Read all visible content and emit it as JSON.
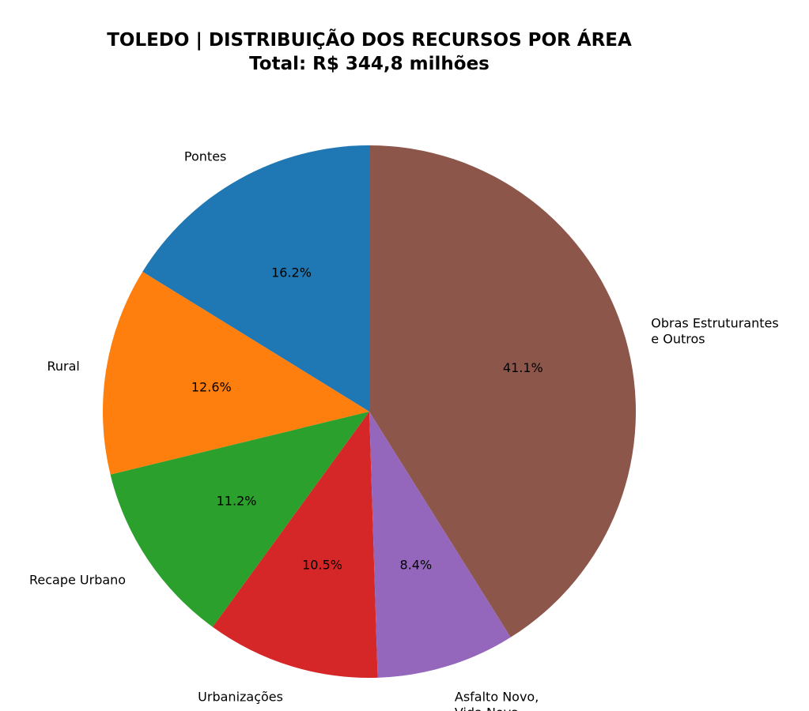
{
  "chart_data": {
    "type": "pie",
    "title": "TOLEDO | DISTRIBUIÇÃO DOS RECURSOS POR ÁREA",
    "subtitle": "Total: R$ 344,8 milhões",
    "start_angle_deg": 90,
    "direction": "counterclockwise",
    "slices": [
      {
        "label": "Pontes",
        "value": 16.2,
        "pct_label": "16.2%",
        "color": "#1f77b4"
      },
      {
        "label": "Rural",
        "value": 12.6,
        "pct_label": "12.6%",
        "color": "#ff7f0e"
      },
      {
        "label": "Recape Urbano",
        "value": 11.2,
        "pct_label": "11.2%",
        "color": "#2ca02c"
      },
      {
        "label": "Urbanizações",
        "value": 10.5,
        "pct_label": "10.5%",
        "color": "#d62728"
      },
      {
        "label": "Asfalto Novo,\nVida Nova",
        "value": 8.4,
        "pct_label": "8.4%",
        "color": "#9467bd"
      },
      {
        "label": "Obras Estruturantes\ne Outros",
        "value": 41.1,
        "pct_label": "41.1%",
        "color": "#8c564b"
      }
    ]
  }
}
